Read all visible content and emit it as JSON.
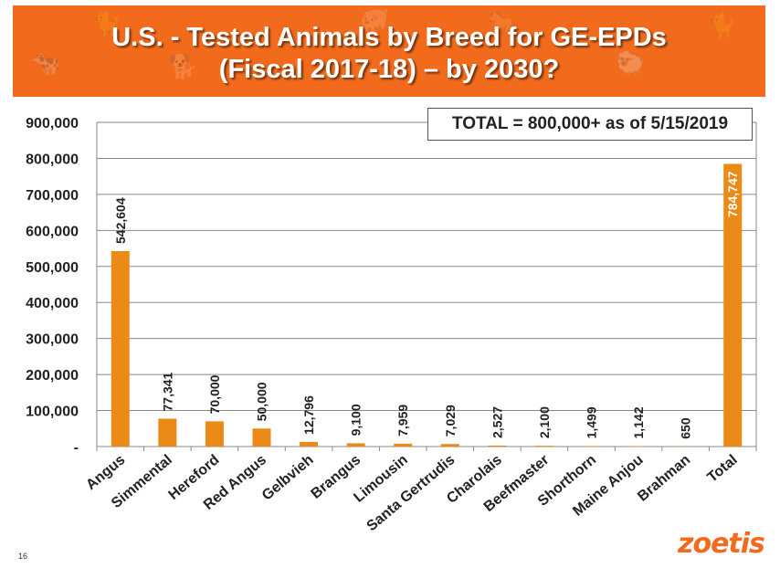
{
  "title_line1": "U.S. - Tested Animals by Breed for GE-EPDs",
  "title_line2": "(Fiscal 2017-18) – by 2030?",
  "total_box": "TOTAL = 800,000+ as of 5/15/2019",
  "page_number": "16",
  "logo_text": "zoetis",
  "colors": {
    "banner": "#f26b1d",
    "bar": "#ec8a17",
    "logo": "#f26b1d"
  },
  "chart_data": {
    "type": "bar",
    "title": "",
    "xlabel": "",
    "ylabel": "",
    "ylim": [
      0,
      900000
    ],
    "yticks": [
      0,
      100000,
      200000,
      300000,
      400000,
      500000,
      600000,
      700000,
      800000,
      900000
    ],
    "ytick_labels": [
      "-",
      "100,000",
      "200,000",
      "300,000",
      "400,000",
      "500,000",
      "600,000",
      "700,000",
      "800,000",
      "900,000"
    ],
    "grid": true,
    "categories": [
      "Angus",
      "Simmental",
      "Hereford",
      "Red Angus",
      "Gelbvieh",
      "Brangus",
      "Limousin",
      "Santa Gertrudis",
      "Charolais",
      "Beefmaster",
      "Shorthorn",
      "Maine Anjou",
      "Brahman",
      "Total"
    ],
    "values": [
      542604,
      77341,
      70000,
      50000,
      12796,
      9100,
      7959,
      7029,
      2527,
      2100,
      1499,
      1142,
      650,
      784747
    ],
    "data_labels": [
      "542,604",
      "77,341",
      "70,000",
      "50,000",
      "12,796",
      "9,100",
      "7,959",
      "7,029",
      "2,527",
      "2,100",
      "1,499",
      "1,142",
      "650",
      "784,747"
    ]
  }
}
